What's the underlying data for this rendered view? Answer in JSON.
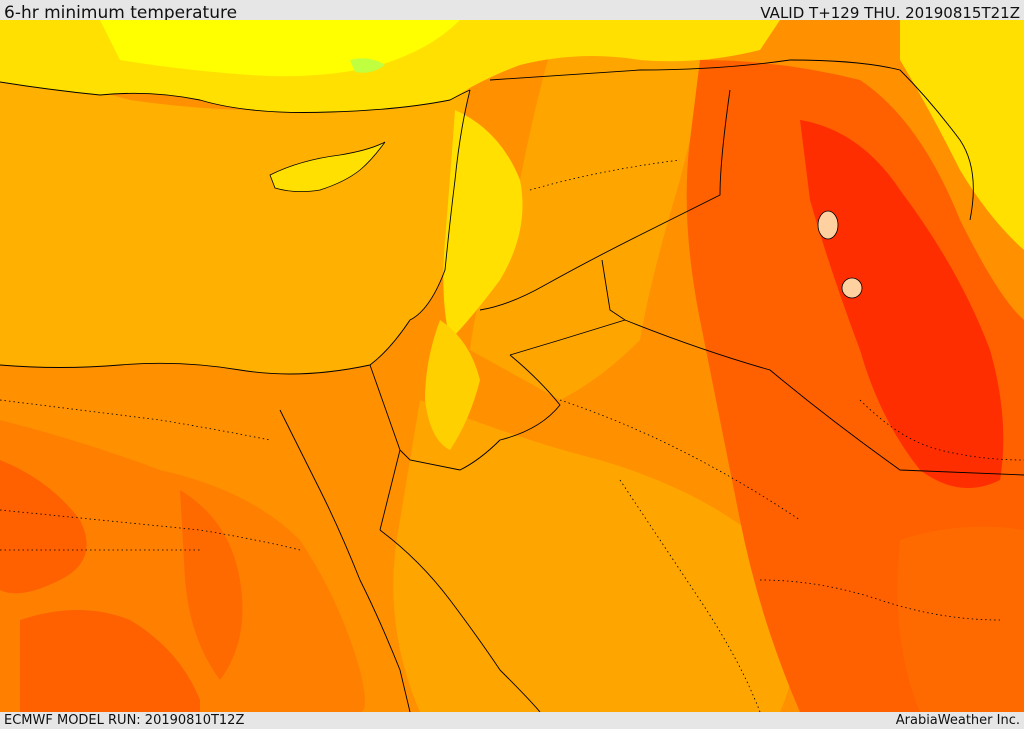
{
  "header": {
    "title": "6-hr minimum temperature",
    "valid": "VALID T+129 THU. 20190815T21Z"
  },
  "footer": {
    "model_run": "ECMWF MODEL RUN: 20190810T12Z",
    "credit": "ArabiaWeather Inc."
  },
  "map": {
    "product": "6-hr minimum temperature",
    "colors": {
      "sea": "#ffb000",
      "cool_yellow": "#ffff00",
      "light_yellow": "#ffe000",
      "green_patch": "#c0ff40",
      "amber": "#ffa500",
      "orange": "#ff8000",
      "dark_orange": "#ff6000",
      "red": "#ff2e00",
      "border": "#000000"
    }
  }
}
